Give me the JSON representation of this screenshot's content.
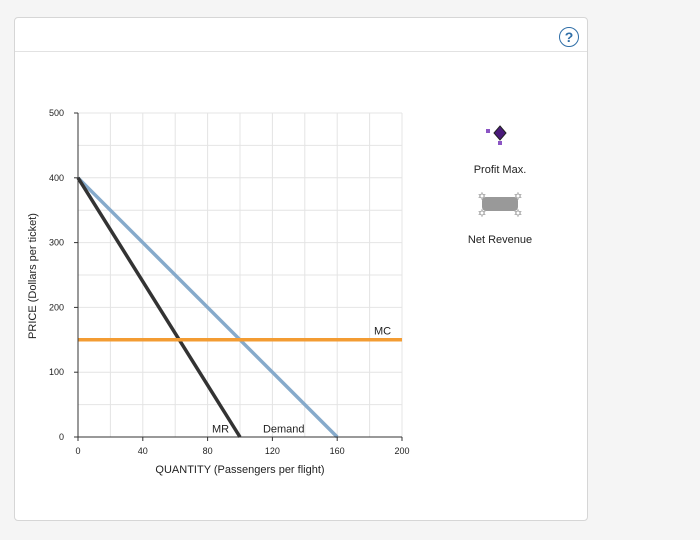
{
  "help": {
    "label": "?"
  },
  "chart_data": {
    "type": "line",
    "xlabel": "QUANTITY (Passengers per flight)",
    "ylabel": "PRICE (Dollars per ticket)",
    "xlim": [
      0,
      200
    ],
    "ylim": [
      0,
      500
    ],
    "x_ticks": [
      0,
      40,
      80,
      120,
      160,
      200
    ],
    "y_ticks": [
      0,
      100,
      200,
      300,
      400,
      500
    ],
    "grid": true,
    "series": [
      {
        "name": "Demand",
        "color": "#86aacb",
        "points": [
          [
            0,
            400
          ],
          [
            160,
            0
          ]
        ]
      },
      {
        "name": "MR",
        "color": "#333333",
        "points": [
          [
            0,
            400
          ],
          [
            100,
            0
          ]
        ]
      },
      {
        "name": "MC",
        "color": "#f39c33",
        "points": [
          [
            0,
            150
          ],
          [
            200,
            150
          ]
        ]
      }
    ],
    "labels": [
      {
        "text": "MC",
        "x": 188,
        "y": 158
      },
      {
        "text": "MR",
        "x": 88,
        "y": 7
      },
      {
        "text": "Demand",
        "x": 127,
        "y": 7
      }
    ]
  },
  "tools": {
    "profit_max": {
      "label": "Profit Max.",
      "color": "#5b2a86",
      "icon": "diamond-point-icon"
    },
    "net_revenue": {
      "label": "Net Revenue",
      "color": "#999999",
      "icon": "shaded-area-icon"
    }
  }
}
